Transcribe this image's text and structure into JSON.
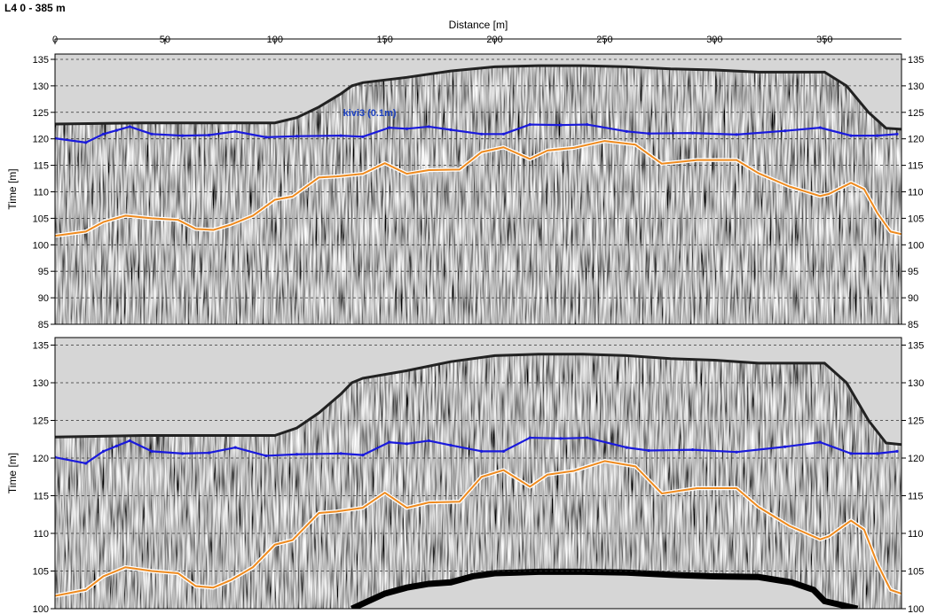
{
  "title": "L4 0 - 385 m",
  "chart_data": [
    {
      "type": "line",
      "panel": "top",
      "xlabel": "Distance [m]",
      "ylabel": "Time [m]",
      "xlim": [
        0,
        385
      ],
      "ylim": [
        85,
        136
      ],
      "x_ticks": [
        0,
        50,
        100,
        150,
        200,
        250,
        300,
        350
      ],
      "y_ticks": [
        135,
        130,
        125,
        120,
        115,
        110,
        105,
        100,
        95,
        90,
        85
      ],
      "grid": "horizontal dashed",
      "annotation": "kivi3 (0.1m)",
      "surface": {
        "x": [
          0,
          40,
          100,
          110,
          120,
          130,
          135,
          140,
          160,
          180,
          200,
          220,
          240,
          260,
          280,
          300,
          320,
          340,
          350,
          360,
          370,
          378,
          385
        ],
        "y": [
          122.8,
          123.0,
          123.0,
          124.0,
          126.0,
          128.5,
          130.0,
          130.6,
          131.6,
          132.8,
          133.6,
          133.8,
          133.8,
          133.6,
          133.2,
          133.0,
          132.6,
          132.6,
          132.6,
          130.0,
          125.0,
          122.0,
          121.8
        ]
      },
      "series": [
        {
          "color": "#1a1adc",
          "x": [
            0,
            14,
            22,
            28,
            34,
            44,
            58,
            70,
            82,
            96,
            110,
            130,
            140,
            152,
            160,
            170,
            180,
            194,
            204,
            216,
            230,
            242,
            260,
            270,
            290,
            310,
            332,
            348,
            362,
            374,
            383
          ],
          "y": [
            120.1,
            119.3,
            120.9,
            121.6,
            122.3,
            120.9,
            120.6,
            120.7,
            121.4,
            120.3,
            120.5,
            120.6,
            120.4,
            122.1,
            121.9,
            122.3,
            121.7,
            120.9,
            120.9,
            122.7,
            122.6,
            122.7,
            121.4,
            121.0,
            121.1,
            120.8,
            121.5,
            122.1,
            120.6,
            120.6,
            120.9
          ]
        },
        {
          "color": "#ee8a1e",
          "x": [
            0,
            14,
            22,
            32,
            44,
            56,
            64,
            72,
            80,
            90,
            100,
            108,
            120,
            128,
            140,
            150,
            160,
            170,
            184,
            194,
            204,
            216,
            224,
            236,
            250,
            264,
            276,
            292,
            310,
            320,
            334,
            348,
            352,
            362,
            368,
            374,
            380,
            385
          ],
          "y": [
            101.7,
            102.5,
            104.3,
            105.5,
            105.0,
            104.7,
            103.0,
            102.8,
            103.8,
            105.5,
            108.5,
            109.1,
            112.7,
            112.9,
            113.4,
            115.4,
            113.4,
            114.1,
            114.2,
            117.5,
            118.4,
            116.2,
            117.8,
            118.3,
            119.6,
            118.9,
            115.3,
            116.0,
            116.0,
            113.5,
            111.0,
            109.2,
            109.6,
            111.7,
            110.5,
            106.0,
            102.5,
            102.0
          ]
        }
      ]
    },
    {
      "type": "line",
      "panel": "bottom",
      "xlabel": "",
      "ylabel": "Time [m]",
      "xlim": [
        0,
        385
      ],
      "ylim": [
        100,
        136
      ],
      "y_ticks": [
        135,
        130,
        125,
        120,
        115,
        110,
        105,
        100
      ],
      "grid": "horizontal dashed",
      "surface": {
        "x": [
          0,
          40,
          100,
          110,
          120,
          130,
          135,
          140,
          160,
          180,
          200,
          220,
          240,
          260,
          280,
          300,
          320,
          340,
          350,
          360,
          370,
          378,
          385
        ],
        "y": [
          122.8,
          123.0,
          123.0,
          124.0,
          126.0,
          128.5,
          130.0,
          130.6,
          131.6,
          132.8,
          133.6,
          133.8,
          133.8,
          133.6,
          133.2,
          133.0,
          132.6,
          132.6,
          132.6,
          130.0,
          125.0,
          122.0,
          121.8
        ]
      },
      "series": [
        {
          "color": "#1a1adc",
          "x": [
            0,
            14,
            22,
            28,
            34,
            44,
            58,
            70,
            82,
            96,
            110,
            130,
            140,
            152,
            160,
            170,
            180,
            194,
            204,
            216,
            230,
            242,
            260,
            270,
            290,
            310,
            332,
            348,
            362,
            374,
            383
          ],
          "y": [
            120.1,
            119.3,
            120.9,
            121.6,
            122.3,
            120.9,
            120.6,
            120.7,
            121.4,
            120.3,
            120.5,
            120.6,
            120.4,
            122.1,
            121.9,
            122.3,
            121.7,
            120.9,
            120.9,
            122.7,
            122.6,
            122.7,
            121.4,
            121.0,
            121.1,
            120.8,
            121.5,
            122.1,
            120.6,
            120.6,
            120.9
          ]
        },
        {
          "color": "#ee8a1e",
          "x": [
            0,
            14,
            22,
            32,
            44,
            56,
            64,
            72,
            80,
            90,
            100,
            108,
            120,
            128,
            140,
            150,
            160,
            170,
            184,
            194,
            204,
            216,
            224,
            236,
            250,
            264,
            276,
            292,
            310,
            320,
            334,
            348,
            352,
            362,
            368,
            374,
            380,
            385
          ],
          "y": [
            101.7,
            102.5,
            104.3,
            105.5,
            105.0,
            104.7,
            103.0,
            102.8,
            103.8,
            105.5,
            108.5,
            109.1,
            112.7,
            112.9,
            113.4,
            115.4,
            113.4,
            114.1,
            114.2,
            117.5,
            118.4,
            116.2,
            117.8,
            118.3,
            119.6,
            118.9,
            115.3,
            116.0,
            116.0,
            113.5,
            111.0,
            109.2,
            109.6,
            111.7,
            110.5,
            106.0,
            102.5,
            102.0
          ]
        }
      ],
      "lower_boundary": {
        "x": [
          135,
          150,
          160,
          170,
          180,
          190,
          195,
          200,
          210,
          220,
          230,
          240,
          260,
          280,
          300,
          320,
          335,
          345,
          350,
          365
        ],
        "y": [
          100.0,
          102.0,
          102.8,
          103.3,
          103.5,
          104.3,
          104.5,
          104.7,
          104.8,
          104.9,
          104.9,
          104.9,
          104.8,
          104.5,
          104.3,
          104.2,
          103.5,
          102.5,
          101.0,
          100.0
        ]
      }
    }
  ]
}
